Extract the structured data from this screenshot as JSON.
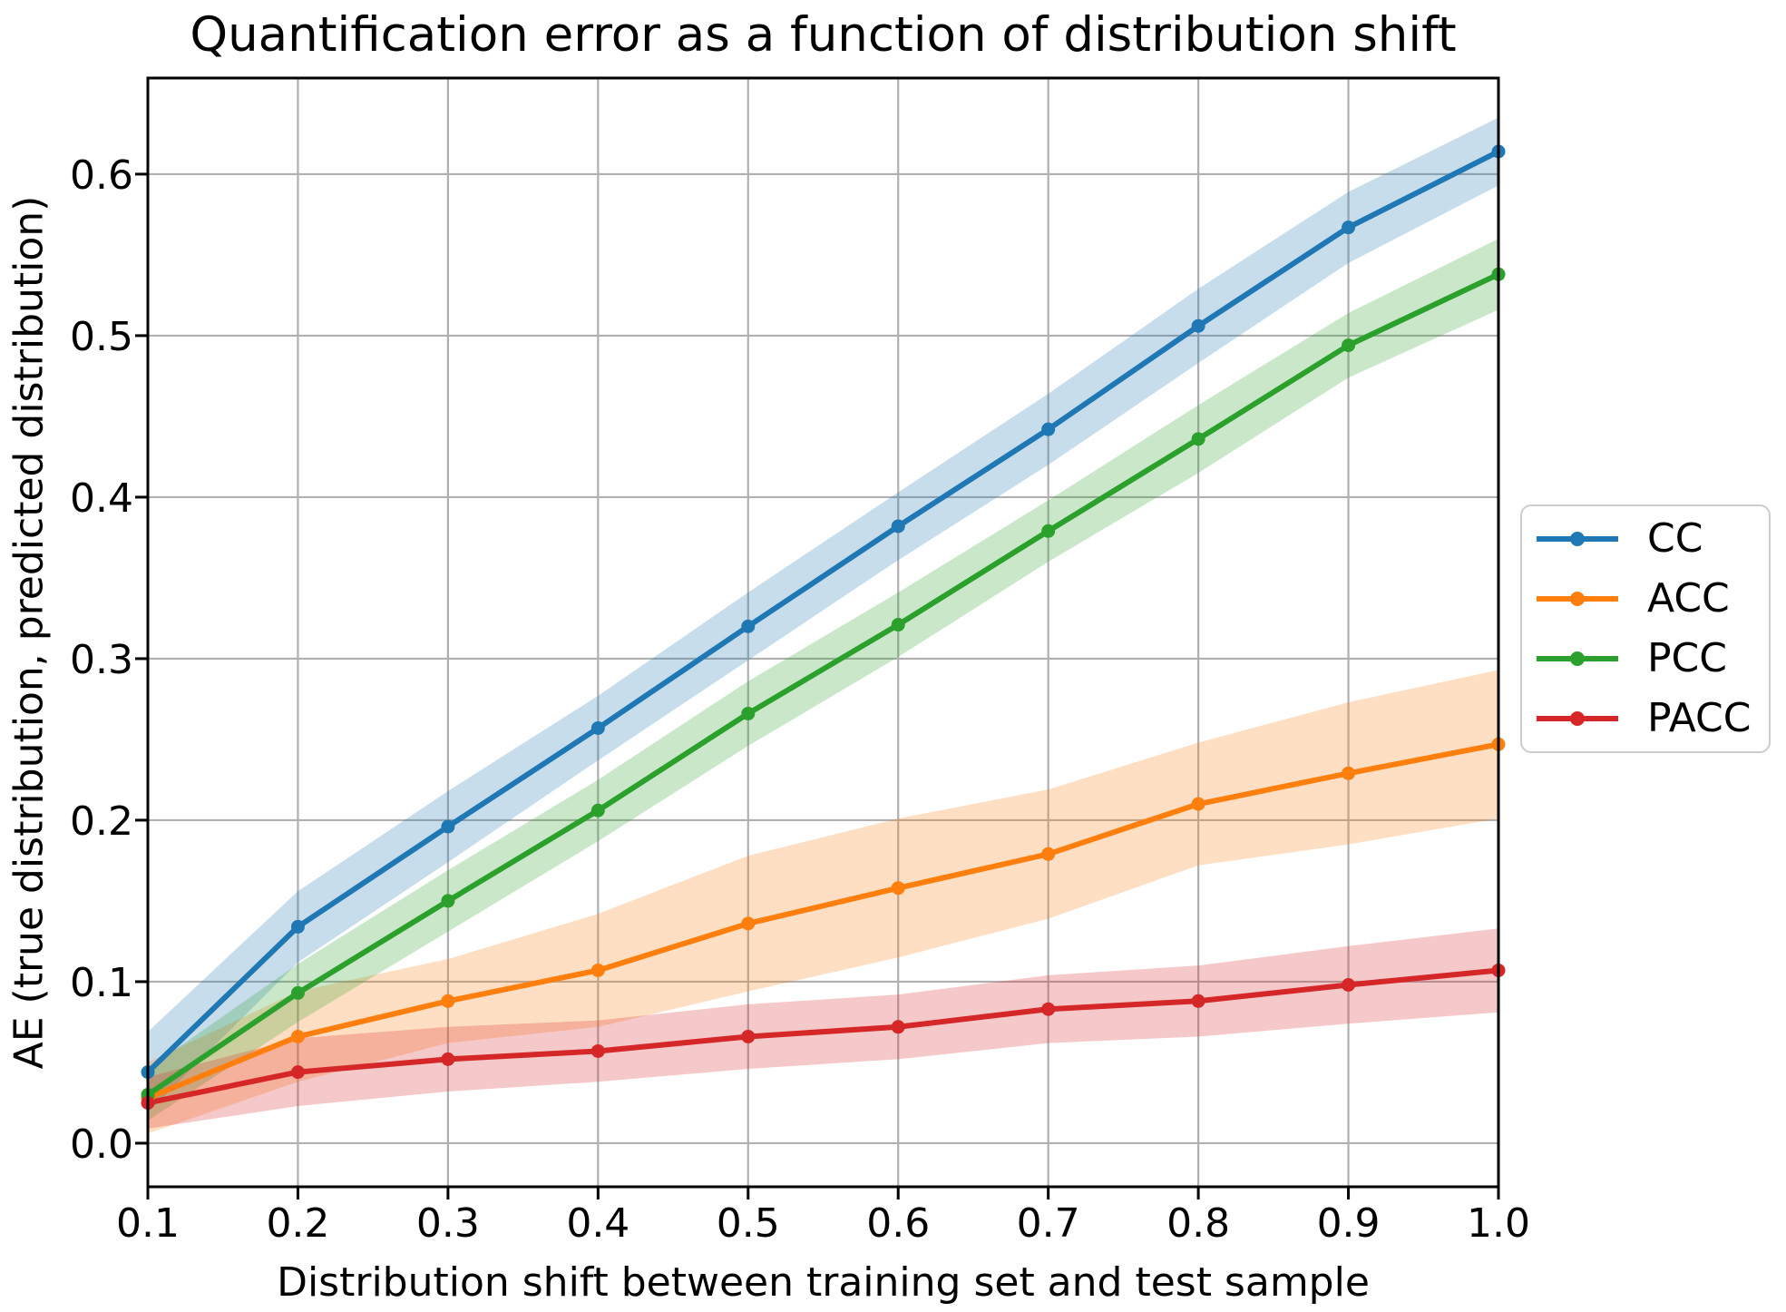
{
  "title": "Quantification error as a function of distribution shift",
  "x_label": "Distribution shift between training set and test sample",
  "y_label": "AE (true distribution, predicted distribution)",
  "chart_data": {
    "type": "line",
    "x": [
      0.1,
      0.2,
      0.3,
      0.4,
      0.5,
      0.6,
      0.7,
      0.8,
      0.9,
      1.0
    ],
    "x_tick_labels": [
      "0.1",
      "0.2",
      "0.3",
      "0.4",
      "0.5",
      "0.6",
      "0.7",
      "0.8",
      "0.9",
      "1.0"
    ],
    "y_tick_values": [
      0.0,
      0.1,
      0.2,
      0.3,
      0.4,
      0.5,
      0.6
    ],
    "y_tick_labels": [
      "0.0",
      "0.1",
      "0.2",
      "0.3",
      "0.4",
      "0.5",
      "0.6"
    ],
    "xlim": [
      0.1,
      1.0
    ],
    "ylim": [
      -0.027,
      0.6595
    ],
    "grid": true,
    "grid_color": "#b0b0b0",
    "band_opacity": 0.25,
    "legend_position": "outside right",
    "series": [
      {
        "name": "CC",
        "color": "#1f77b4",
        "values": [
          0.044,
          0.134,
          0.196,
          0.257,
          0.32,
          0.382,
          0.442,
          0.506,
          0.567,
          0.614
        ],
        "band_upper": [
          0.069,
          0.156,
          0.218,
          0.277,
          0.341,
          0.403,
          0.464,
          0.529,
          0.589,
          0.635
        ],
        "band_lower": [
          0.019,
          0.112,
          0.174,
          0.237,
          0.299,
          0.361,
          0.42,
          0.483,
          0.545,
          0.593
        ]
      },
      {
        "name": "ACC",
        "color": "#ff7f0e",
        "values": [
          0.028,
          0.066,
          0.088,
          0.107,
          0.136,
          0.158,
          0.179,
          0.21,
          0.229,
          0.247
        ],
        "band_upper": [
          0.05,
          0.094,
          0.114,
          0.142,
          0.178,
          0.201,
          0.219,
          0.248,
          0.273,
          0.293
        ],
        "band_lower": [
          0.006,
          0.038,
          0.062,
          0.072,
          0.094,
          0.115,
          0.139,
          0.172,
          0.185,
          0.201
        ]
      },
      {
        "name": "PCC",
        "color": "#2ca02c",
        "values": [
          0.03,
          0.093,
          0.15,
          0.206,
          0.266,
          0.321,
          0.379,
          0.436,
          0.494,
          0.538
        ],
        "band_upper": [
          0.046,
          0.111,
          0.169,
          0.225,
          0.286,
          0.341,
          0.398,
          0.457,
          0.514,
          0.56
        ],
        "band_lower": [
          0.014,
          0.075,
          0.131,
          0.187,
          0.246,
          0.301,
          0.36,
          0.415,
          0.474,
          0.516
        ]
      },
      {
        "name": "PACC",
        "color": "#d62728",
        "values": [
          0.025,
          0.044,
          0.052,
          0.057,
          0.066,
          0.072,
          0.083,
          0.088,
          0.098,
          0.107
        ],
        "band_upper": [
          0.041,
          0.065,
          0.072,
          0.076,
          0.086,
          0.092,
          0.104,
          0.11,
          0.122,
          0.133
        ],
        "band_lower": [
          0.009,
          0.023,
          0.032,
          0.038,
          0.046,
          0.052,
          0.062,
          0.066,
          0.074,
          0.081
        ]
      }
    ]
  }
}
